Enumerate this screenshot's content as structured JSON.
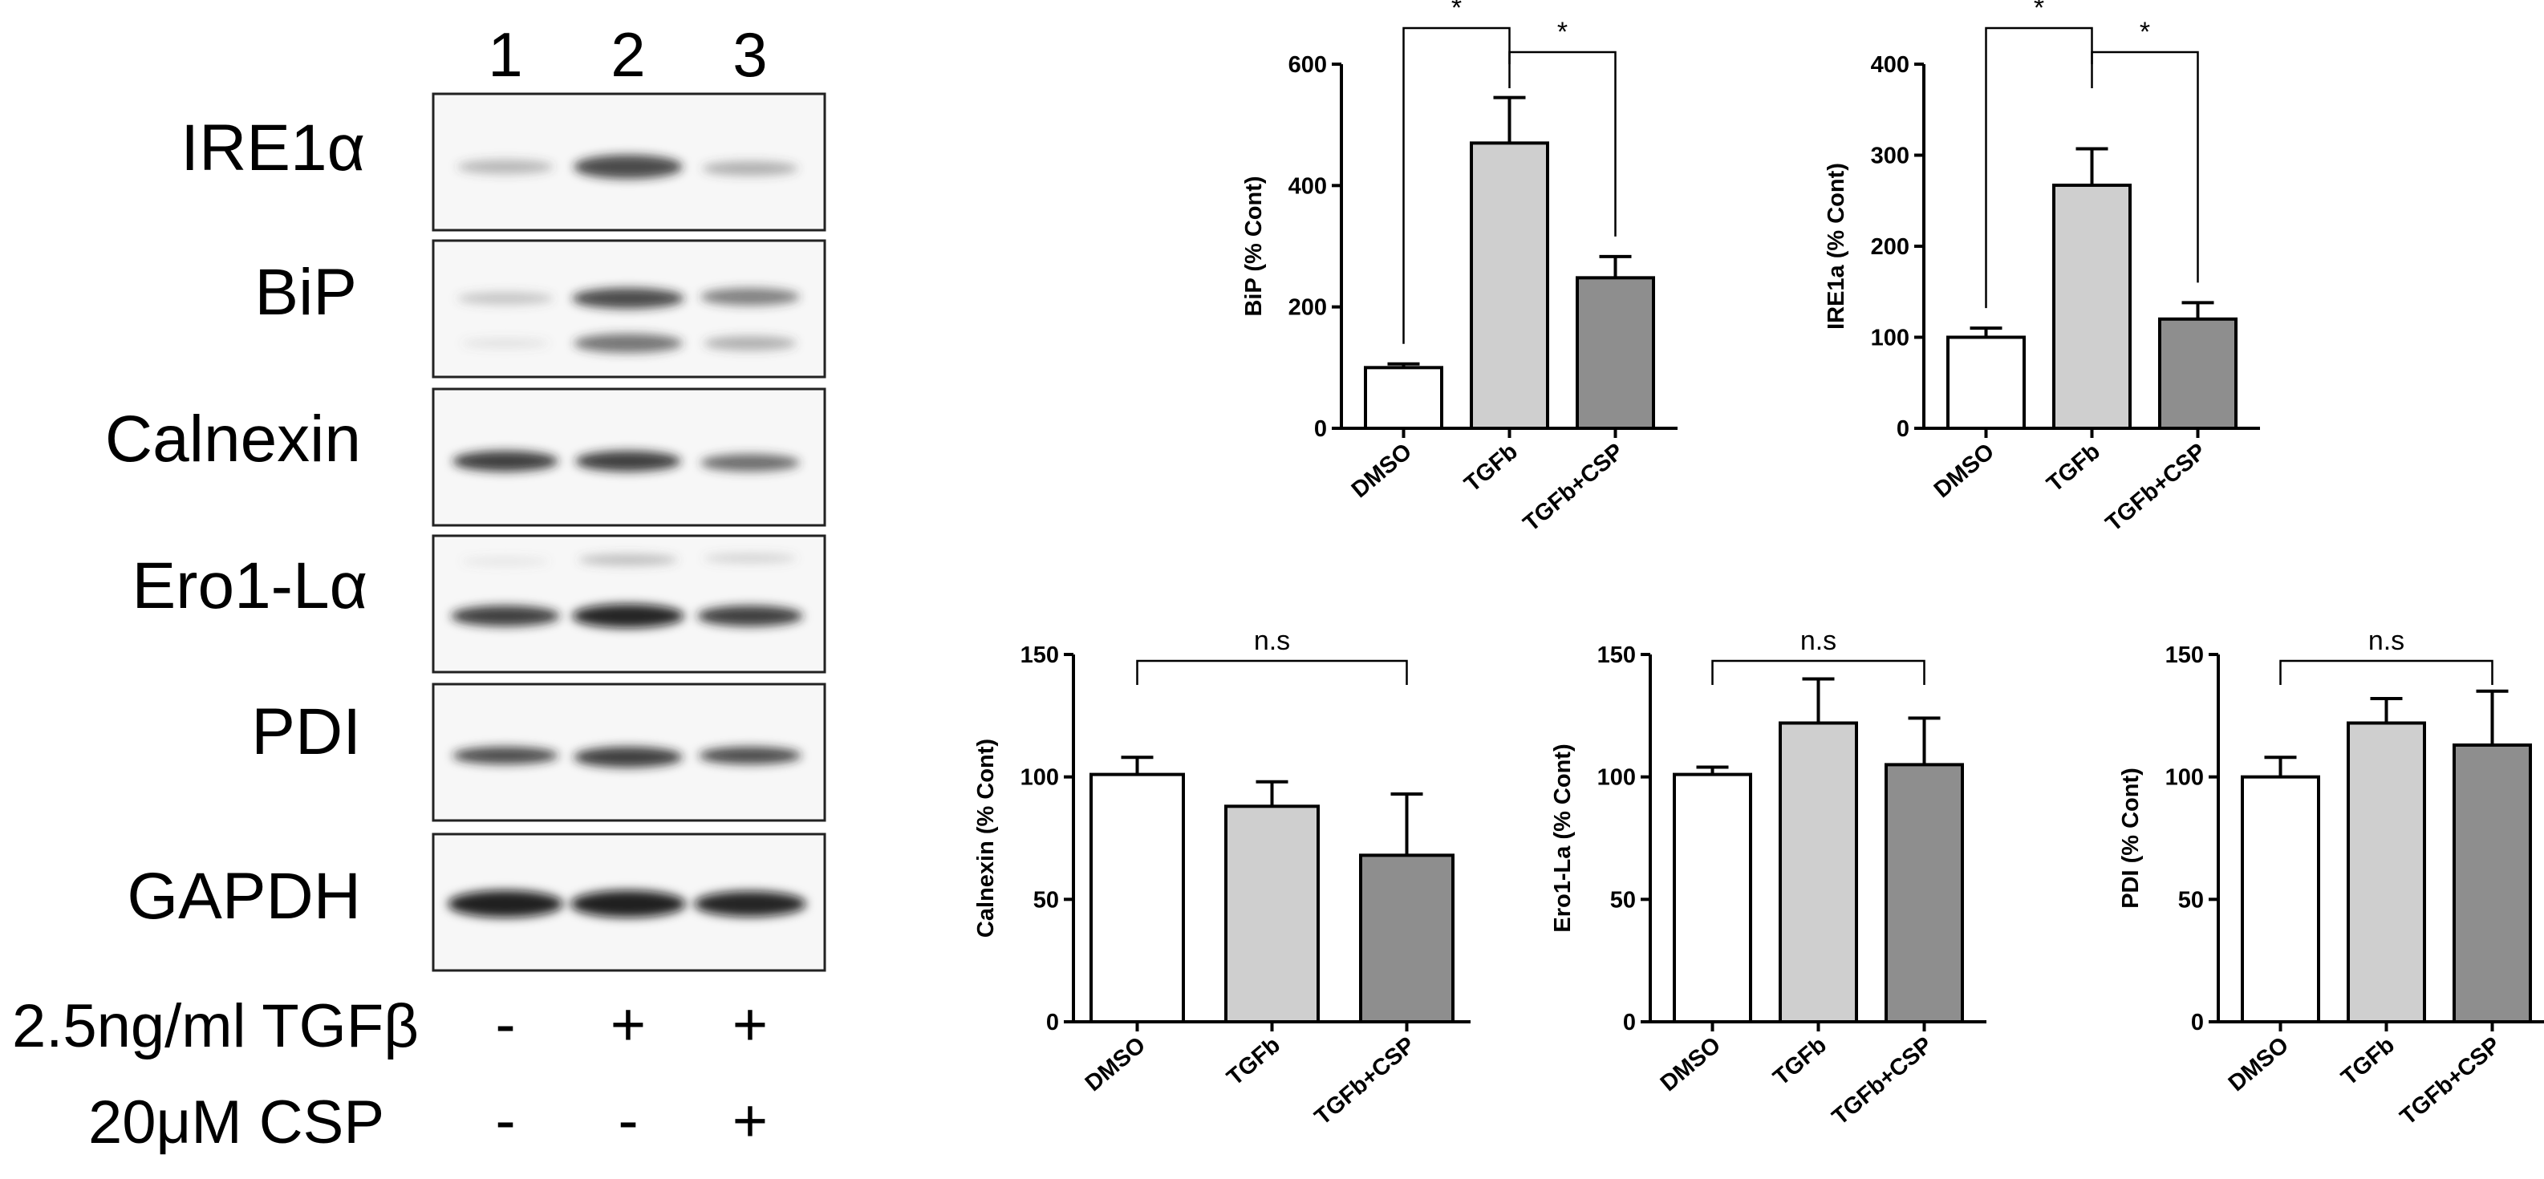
{
  "blot": {
    "lane_numbers": [
      "1",
      "2",
      "3"
    ],
    "proteins": [
      "IRE1α",
      "BiP",
      "Calnexin",
      "Ero1-Lα",
      "PDI",
      "GAPDH"
    ],
    "treatments": [
      {
        "label": "2.5ng/ml TGFβ",
        "marks": [
          "-",
          "+",
          "+"
        ]
      },
      {
        "label": "20μM CSP",
        "marks": [
          "-",
          "-",
          "+"
        ]
      }
    ]
  },
  "colors": {
    "bar_fills": [
      "#ffffff",
      "#cfcfcf",
      "#8e8e8e"
    ],
    "band": "#1a1a1a",
    "axis": "#000000"
  },
  "chart_data": [
    {
      "type": "bar",
      "categories": [
        "DMSO",
        "TGFb",
        "TGFb+CSP"
      ],
      "values": [
        100,
        470,
        248
      ],
      "errors": [
        6,
        75,
        35
      ],
      "ylabel": "BiP (% Cont)",
      "ylim": [
        0,
        600
      ],
      "yticks": [
        0,
        200,
        400,
        600
      ],
      "significance": [
        {
          "from": 0,
          "to": 1,
          "label": "*"
        },
        {
          "from": 1,
          "to": 2,
          "label": "*"
        }
      ]
    },
    {
      "type": "bar",
      "categories": [
        "DMSO",
        "TGFb",
        "TGFb+CSP"
      ],
      "values": [
        100,
        267,
        120
      ],
      "errors": [
        10,
        40,
        18
      ],
      "ylabel": "IRE1a (% Cont)",
      "ylim": [
        0,
        400
      ],
      "yticks": [
        0,
        100,
        200,
        300,
        400
      ],
      "significance": [
        {
          "from": 0,
          "to": 1,
          "label": "*"
        },
        {
          "from": 1,
          "to": 2,
          "label": "*"
        }
      ]
    },
    {
      "type": "bar",
      "categories": [
        "DMSO",
        "TGFb",
        "TGFb+CSP"
      ],
      "values": [
        101,
        88,
        68
      ],
      "errors": [
        7,
        10,
        25
      ],
      "ylabel": "Calnexin (% Cont)",
      "ylim": [
        0,
        150
      ],
      "yticks": [
        0,
        50,
        100,
        150
      ],
      "significance": [
        {
          "from": 0,
          "to": 2,
          "label": "n.s"
        }
      ]
    },
    {
      "type": "bar",
      "categories": [
        "DMSO",
        "TGFb",
        "TGFb+CSP"
      ],
      "values": [
        101,
        122,
        105
      ],
      "errors": [
        3,
        18,
        19
      ],
      "ylabel": "Ero1-La (% Cont)",
      "ylim": [
        0,
        150
      ],
      "yticks": [
        0,
        50,
        100,
        150
      ],
      "significance": [
        {
          "from": 0,
          "to": 2,
          "label": "n.s"
        }
      ]
    },
    {
      "type": "bar",
      "categories": [
        "DMSO",
        "TGFb",
        "TGFb+CSP"
      ],
      "values": [
        100,
        122,
        113
      ],
      "errors": [
        8,
        10,
        22
      ],
      "ylabel": "PDI (% Cont)",
      "ylim": [
        0,
        150
      ],
      "yticks": [
        0,
        50,
        100,
        150
      ],
      "significance": [
        {
          "from": 0,
          "to": 2,
          "label": "n.s"
        }
      ]
    }
  ]
}
